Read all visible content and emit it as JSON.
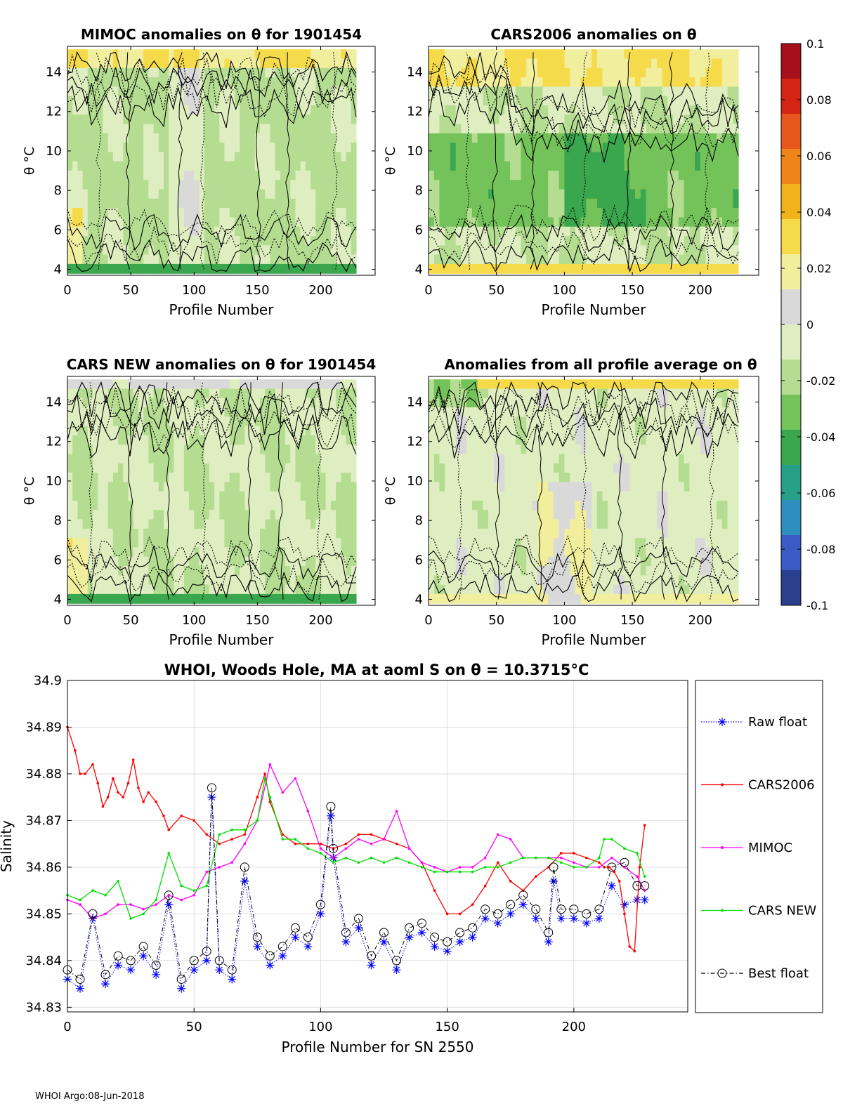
{
  "footer": "WHOI Argo:08-Jun-2018",
  "colormap": [
    "#2b3f8f",
    "#3a5bc4",
    "#2e8fbf",
    "#27a08a",
    "#3aa74e",
    "#74c35a",
    "#b5dd92",
    "#dfeec0",
    "#d9d9d9",
    "#f1ee9e",
    "#f5da4a",
    "#f1b21a",
    "#ef8418",
    "#e7561c",
    "#d42414",
    "#a60f1c"
  ],
  "chart_data": [
    {
      "type": "heatmap",
      "title": "MIMOC anomalies on θ  for 1901454",
      "xlabel": "Profile Number",
      "ylabel": "θ °C",
      "xlim": [
        0,
        243
      ],
      "ylim": [
        3.7,
        15.3
      ],
      "xticks": [
        "0",
        "50",
        "100",
        "150",
        "200"
      ],
      "yticks": [
        "4",
        "6",
        "8",
        "10",
        "12",
        "14"
      ],
      "profile_range": [
        0,
        228
      ],
      "summary": "Mostly weak negative anomalies (-0.01 to -0.03) at mid theta, positive anomalies near 14-15 °C, strong negative near 4 °C"
    },
    {
      "type": "heatmap",
      "title": "CARS2006 anomalies on θ",
      "xlabel": "Profile Number",
      "ylabel": "θ °C",
      "xlim": [
        0,
        243
      ],
      "ylim": [
        3.7,
        15.3
      ],
      "xticks": [
        "0",
        "50",
        "100",
        "150",
        "200"
      ],
      "yticks": [
        "4",
        "6",
        "8",
        "10",
        "12",
        "14"
      ],
      "profile_range": [
        0,
        228
      ],
      "summary": "Positive anomalies (+0.02 to +0.04) above 13 °C, negative anomalies (-0.03 to -0.05) between 6 and 11 °C"
    },
    {
      "type": "heatmap",
      "title": "CARS NEW anomalies on θ for 1901454",
      "xlabel": "Profile Number",
      "ylabel": "θ °C",
      "xlim": [
        0,
        243
      ],
      "ylim": [
        3.7,
        15.3
      ],
      "xticks": [
        "0",
        "50",
        "100",
        "150",
        "200"
      ],
      "yticks": [
        "4",
        "6",
        "8",
        "10",
        "12",
        "14"
      ],
      "profile_range": [
        0,
        228
      ],
      "summary": "Near-zero to weak negative anomalies, positive near 5-7 °C for early profiles"
    },
    {
      "type": "heatmap",
      "title": "Anomalies from all profile average on θ",
      "xlabel": "Profile Number",
      "ylabel": "θ °C",
      "xlim": [
        0,
        243
      ],
      "ylim": [
        3.7,
        15.3
      ],
      "xticks": [
        "0",
        "50",
        "100",
        "150",
        "200"
      ],
      "yticks": [
        "4",
        "6",
        "8",
        "10",
        "12",
        "14"
      ],
      "profile_range": [
        0,
        228
      ],
      "summary": "Negative near 14-15 °C for early profiles, positive (+0.01) below 10 °C for profiles 80-120"
    },
    {
      "type": "colorbar",
      "range": [
        -0.1,
        0.1
      ],
      "tick_labels": [
        "0.1",
        "0.08",
        "0.06",
        "0.04",
        "0.02",
        "0",
        "-0.02",
        "-0.04",
        "-0.06",
        "-0.08",
        "-0.1"
      ]
    },
    {
      "type": "line",
      "title": "WHOI, Woods Hole, MA at aoml S on θ = 10.3715°C",
      "xlabel": "Profile Number for SN 2550",
      "ylabel": "Salinity",
      "xlim": [
        0,
        245
      ],
      "ylim": [
        34.829,
        34.9
      ],
      "xticks": [
        "0",
        "50",
        "100",
        "150",
        "200"
      ],
      "yticks": [
        "34.83",
        "34.84",
        "34.85",
        "34.86",
        "34.87",
        "34.88",
        "34.89",
        "34.9"
      ],
      "legend_position": "right, outside",
      "series": [
        {
          "name": "Raw float",
          "color": "#0000ff",
          "style": "dotted, star markers",
          "x": [
            0,
            5,
            10,
            15,
            20,
            25,
            30,
            35,
            40,
            45,
            50,
            55,
            57,
            60,
            65,
            70,
            75,
            80,
            85,
            90,
            95,
            100,
            104,
            105,
            110,
            115,
            120,
            125,
            130,
            135,
            140,
            145,
            150,
            155,
            160,
            165,
            170,
            175,
            180,
            185,
            190,
            192,
            195,
            200,
            205,
            210,
            215,
            220,
            225,
            228
          ],
          "y": [
            34.836,
            34.834,
            34.849,
            34.835,
            34.839,
            34.838,
            34.841,
            34.837,
            34.852,
            34.834,
            34.838,
            34.84,
            34.875,
            34.838,
            34.836,
            34.857,
            34.843,
            34.839,
            34.841,
            34.845,
            34.843,
            34.85,
            34.871,
            34.862,
            34.844,
            34.847,
            34.839,
            34.844,
            34.838,
            34.845,
            34.846,
            34.843,
            34.842,
            34.844,
            34.845,
            34.849,
            34.848,
            34.85,
            34.852,
            34.849,
            34.844,
            34.857,
            34.849,
            34.849,
            34.848,
            34.849,
            34.856,
            34.852,
            34.853,
            34.853
          ]
        },
        {
          "name": "CARS2006",
          "color": "#ff0000",
          "style": "solid, dot markers",
          "x": [
            0,
            3,
            5,
            7,
            10,
            12,
            14,
            16,
            18,
            20,
            22,
            24,
            26,
            28,
            30,
            32,
            35,
            38,
            40,
            45,
            50,
            55,
            60,
            65,
            70,
            75,
            78,
            80,
            85,
            90,
            95,
            100,
            105,
            110,
            115,
            120,
            125,
            130,
            135,
            140,
            145,
            150,
            155,
            160,
            165,
            170,
            175,
            180,
            185,
            190,
            195,
            200,
            205,
            210,
            212,
            214,
            216,
            218,
            220,
            222,
            224,
            226,
            228
          ],
          "y": [
            34.89,
            34.885,
            34.88,
            34.88,
            34.882,
            34.878,
            34.873,
            34.875,
            34.879,
            34.876,
            34.875,
            34.878,
            34.883,
            34.877,
            34.874,
            34.876,
            34.874,
            34.871,
            34.868,
            34.871,
            34.87,
            34.867,
            34.865,
            34.866,
            34.867,
            34.875,
            34.88,
            34.874,
            34.867,
            34.865,
            34.865,
            34.865,
            34.864,
            34.865,
            34.867,
            34.867,
            34.866,
            34.865,
            34.864,
            34.861,
            34.855,
            34.85,
            34.85,
            34.852,
            34.856,
            34.861,
            34.857,
            34.855,
            34.858,
            34.86,
            34.863,
            34.863,
            34.862,
            34.861,
            34.86,
            34.86,
            34.859,
            34.857,
            34.85,
            34.843,
            34.842,
            34.86,
            34.869
          ]
        },
        {
          "name": "MIMOC",
          "color": "#ff00ff",
          "style": "solid, dot markers",
          "x": [
            0,
            5,
            10,
            15,
            20,
            25,
            30,
            35,
            40,
            45,
            50,
            55,
            60,
            65,
            70,
            75,
            80,
            85,
            90,
            95,
            100,
            105,
            110,
            115,
            120,
            125,
            130,
            135,
            140,
            145,
            150,
            155,
            160,
            165,
            170,
            175,
            180,
            185,
            190,
            195,
            200,
            205,
            210,
            215,
            220,
            225,
            228
          ],
          "y": [
            34.853,
            34.852,
            34.849,
            34.85,
            34.852,
            34.852,
            34.851,
            34.852,
            34.854,
            34.853,
            34.854,
            34.859,
            34.86,
            34.861,
            34.865,
            34.87,
            34.882,
            34.876,
            34.879,
            34.872,
            34.864,
            34.862,
            34.864,
            34.866,
            34.865,
            34.866,
            34.872,
            34.864,
            34.861,
            34.86,
            34.859,
            34.86,
            34.86,
            34.862,
            34.867,
            34.866,
            34.862,
            34.862,
            34.862,
            34.862,
            34.861,
            34.86,
            34.86,
            34.862,
            34.86,
            34.858,
            34.855
          ]
        },
        {
          "name": "CARS NEW",
          "color": "#00e000",
          "style": "solid, dot markers",
          "x": [
            0,
            5,
            10,
            15,
            20,
            25,
            30,
            35,
            40,
            45,
            50,
            55,
            60,
            65,
            70,
            75,
            78,
            80,
            85,
            90,
            95,
            100,
            105,
            110,
            115,
            120,
            125,
            130,
            135,
            140,
            145,
            150,
            155,
            160,
            165,
            170,
            175,
            180,
            185,
            190,
            195,
            200,
            205,
            210,
            212,
            215,
            220,
            225,
            228
          ],
          "y": [
            34.854,
            34.853,
            34.855,
            34.854,
            34.857,
            34.849,
            34.85,
            34.853,
            34.863,
            34.856,
            34.855,
            34.856,
            34.867,
            34.868,
            34.868,
            34.87,
            34.879,
            34.875,
            34.866,
            34.866,
            34.864,
            34.863,
            34.861,
            34.862,
            34.861,
            34.862,
            34.861,
            34.862,
            34.861,
            34.86,
            34.859,
            34.859,
            34.859,
            34.859,
            34.86,
            34.86,
            34.861,
            34.862,
            34.862,
            34.862,
            34.861,
            34.86,
            34.86,
            34.862,
            34.866,
            34.866,
            34.864,
            34.863,
            34.858
          ]
        },
        {
          "name": "Best float",
          "color": "#000000",
          "style": "dash-dot, open circle markers",
          "x": [
            0,
            5,
            10,
            15,
            20,
            25,
            30,
            35,
            40,
            45,
            50,
            55,
            57,
            60,
            65,
            70,
            75,
            80,
            85,
            90,
            95,
            100,
            104,
            105,
            110,
            115,
            120,
            125,
            130,
            135,
            140,
            145,
            150,
            155,
            160,
            165,
            170,
            175,
            180,
            185,
            190,
            192,
            195,
            200,
            205,
            210,
            215,
            220,
            225,
            228
          ],
          "y": [
            34.838,
            34.836,
            34.85,
            34.837,
            34.841,
            34.84,
            34.843,
            34.839,
            34.854,
            34.836,
            34.84,
            34.842,
            34.877,
            34.84,
            34.838,
            34.86,
            34.845,
            34.841,
            34.843,
            34.847,
            34.845,
            34.852,
            34.873,
            34.864,
            34.846,
            34.849,
            34.841,
            34.846,
            34.84,
            34.847,
            34.848,
            34.845,
            34.844,
            34.846,
            34.847,
            34.851,
            34.85,
            34.852,
            34.854,
            34.851,
            34.846,
            34.86,
            34.851,
            34.851,
            34.85,
            34.851,
            34.86,
            34.861,
            34.856,
            34.856
          ]
        }
      ]
    }
  ]
}
